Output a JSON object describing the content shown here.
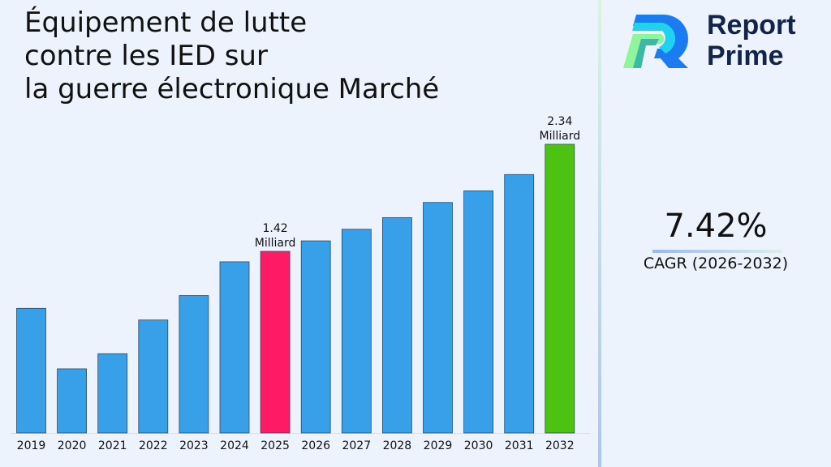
{
  "title": "Équipement de lutte\ncontre les IED sur\nla guerre électronique Marché",
  "logo": {
    "text_line1": "Report",
    "text_line2": "Prime"
  },
  "cagr": {
    "value": "7.42%",
    "label": "CAGR (2026-2032)"
  },
  "colors": {
    "default_bar": "#38a0e8",
    "highlight_2025": "#ff1a66",
    "highlight_2032": "#4cc313",
    "background": "#edf3fd"
  },
  "chart_data": {
    "type": "bar",
    "title": "Équipement de lutte contre les IED sur la guerre électronique Marché",
    "categories": [
      "2019",
      "2020",
      "2021",
      "2022",
      "2023",
      "2024",
      "2025",
      "2026",
      "2027",
      "2028",
      "2029",
      "2030",
      "2031",
      "2032"
    ],
    "values": [
      0.93,
      0.41,
      0.54,
      0.83,
      1.04,
      1.33,
      1.42,
      1.51,
      1.61,
      1.71,
      1.84,
      1.94,
      2.08,
      2.34
    ],
    "data_labels": [
      {
        "category": "2025",
        "value": "1.42",
        "unit": "Milliard"
      },
      {
        "category": "2032",
        "value": "2.34",
        "unit": "Milliard"
      }
    ],
    "xlabel": "",
    "ylabel": "",
    "grid": false,
    "legend": "none"
  }
}
